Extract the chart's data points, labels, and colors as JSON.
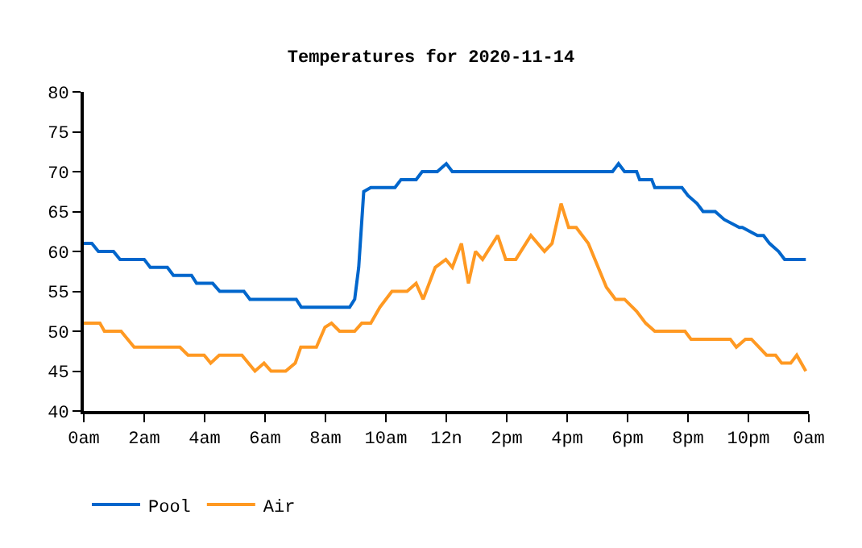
{
  "chart_data": {
    "type": "line",
    "title": "Temperatures for 2020-11-14",
    "xlim": [
      "2020-11-14T00:00",
      "2020-11-15T00:00"
    ],
    "xticks": [
      {
        "value": "2020-11-14T00:00",
        "label": "0am"
      },
      {
        "value": "2020-11-14T02:00",
        "label": "2am"
      },
      {
        "value": "2020-11-14T04:00",
        "label": "4am"
      },
      {
        "value": "2020-11-14T06:00",
        "label": "6am"
      },
      {
        "value": "2020-11-14T08:00",
        "label": "8am"
      },
      {
        "value": "2020-11-14T10:00",
        "label": "10am"
      },
      {
        "value": "2020-11-14T12:00",
        "label": "12n"
      },
      {
        "value": "2020-11-14T14:00",
        "label": "2pm"
      },
      {
        "value": "2020-11-14T16:00",
        "label": "4pm"
      },
      {
        "value": "2020-11-14T18:00",
        "label": "6pm"
      },
      {
        "value": "2020-11-14T20:00",
        "label": "8pm"
      },
      {
        "value": "2020-11-14T22:00",
        "label": "10pm"
      },
      {
        "value": "2020-11-15T00:00",
        "label": "0am"
      }
    ],
    "ylim": [
      40,
      80
    ],
    "yticks": [
      40,
      45,
      50,
      55,
      60,
      65,
      70,
      75,
      80
    ],
    "legend": "bottom",
    "marker": "none",
    "line_style": "solid",
    "series": [
      {
        "name": "Pool",
        "color": "#0066cc",
        "x": [
          "2020-11-14T00:00",
          "2020-11-14T00:16",
          "2020-11-14T00:29",
          "2020-11-14T00:59",
          "2020-11-14T01:12",
          "2020-11-14T02:00",
          "2020-11-14T02:12",
          "2020-11-14T02:46",
          "2020-11-14T02:58",
          "2020-11-14T03:34",
          "2020-11-14T03:44",
          "2020-11-14T04:16",
          "2020-11-14T04:30",
          "2020-11-14T05:18",
          "2020-11-14T05:30",
          "2020-11-14T07:02",
          "2020-11-14T07:12",
          "2020-11-14T08:48",
          "2020-11-14T08:58",
          "2020-11-14T09:06",
          "2020-11-14T09:16",
          "2020-11-14T09:30",
          "2020-11-14T10:18",
          "2020-11-14T10:30",
          "2020-11-14T11:00",
          "2020-11-14T11:12",
          "2020-11-14T11:42",
          "2020-11-14T12:00",
          "2020-11-14T12:12",
          "2020-11-14T17:30",
          "2020-11-14T17:42",
          "2020-11-14T17:54",
          "2020-11-14T18:18",
          "2020-11-14T18:24",
          "2020-11-14T18:48",
          "2020-11-14T18:54",
          "2020-11-14T19:48",
          "2020-11-14T20:00",
          "2020-11-14T20:18",
          "2020-11-14T20:30",
          "2020-11-14T20:54",
          "2020-11-14T21:12",
          "2020-11-14T21:42",
          "2020-11-14T21:48",
          "2020-11-14T22:18",
          "2020-11-14T22:30",
          "2020-11-14T22:42",
          "2020-11-14T23:00",
          "2020-11-14T23:12",
          "2020-11-14T23:54"
        ],
        "values": [
          61,
          61,
          60,
          60,
          59,
          59,
          58,
          58,
          57,
          57,
          56,
          56,
          55,
          55,
          54,
          54,
          53,
          53,
          54,
          58,
          67.5,
          68,
          68,
          69,
          69,
          70,
          70,
          71,
          70,
          70,
          71,
          70,
          70,
          69,
          69,
          68,
          68,
          67,
          66,
          65,
          65,
          64,
          63,
          63,
          62,
          62,
          61,
          60,
          59,
          59
        ]
      },
      {
        "name": "Air",
        "color": "#ff9922",
        "x": [
          "2020-11-14T00:00",
          "2020-11-14T00:32",
          "2020-11-14T00:41",
          "2020-11-14T01:14",
          "2020-11-14T01:40",
          "2020-11-14T03:11",
          "2020-11-14T03:27",
          "2020-11-14T03:59",
          "2020-11-14T04:12",
          "2020-11-14T04:29",
          "2020-11-14T05:14",
          "2020-11-14T05:40",
          "2020-11-14T05:58",
          "2020-11-14T06:12",
          "2020-11-14T06:41",
          "2020-11-14T07:00",
          "2020-11-14T07:11",
          "2020-11-14T07:42",
          "2020-11-14T07:59",
          "2020-11-14T08:12",
          "2020-11-14T08:28",
          "2020-11-14T08:58",
          "2020-11-14T09:12",
          "2020-11-14T09:30",
          "2020-11-14T09:48",
          "2020-11-14T10:12",
          "2020-11-14T10:42",
          "2020-11-14T11:00",
          "2020-11-14T11:14",
          "2020-11-14T11:38",
          "2020-11-14T11:59",
          "2020-11-14T12:12",
          "2020-11-14T12:30",
          "2020-11-14T12:44",
          "2020-11-14T12:58",
          "2020-11-14T13:12",
          "2020-11-14T13:42",
          "2020-11-14T13:58",
          "2020-11-14T14:18",
          "2020-11-14T14:48",
          "2020-11-14T15:15",
          "2020-11-14T15:30",
          "2020-11-14T15:48",
          "2020-11-14T16:03",
          "2020-11-14T16:18",
          "2020-11-14T16:42",
          "2020-11-14T17:18",
          "2020-11-14T17:36",
          "2020-11-14T17:54",
          "2020-11-14T18:18",
          "2020-11-14T18:36",
          "2020-11-14T18:54",
          "2020-11-14T19:54",
          "2020-11-14T20:06",
          "2020-11-14T21:24",
          "2020-11-14T21:36",
          "2020-11-14T21:54",
          "2020-11-14T22:06",
          "2020-11-14T22:36",
          "2020-11-14T22:54",
          "2020-11-14T23:06",
          "2020-11-14T23:24",
          "2020-11-14T23:36",
          "2020-11-14T23:54"
        ],
        "values": [
          51,
          51,
          50,
          50,
          48,
          48,
          47,
          47,
          46,
          47,
          47,
          45,
          46,
          45,
          45,
          46,
          48,
          48,
          50.5,
          51,
          50,
          50,
          51,
          51,
          53,
          55,
          55,
          56,
          54,
          58,
          59,
          58,
          61,
          56,
          60,
          59,
          62,
          59,
          59,
          62,
          60,
          61,
          66,
          63,
          63,
          61,
          55.5,
          54,
          54,
          52.5,
          51,
          50,
          50,
          49,
          49,
          48,
          49,
          49,
          47,
          47,
          46,
          46,
          47,
          45
        ]
      }
    ]
  }
}
